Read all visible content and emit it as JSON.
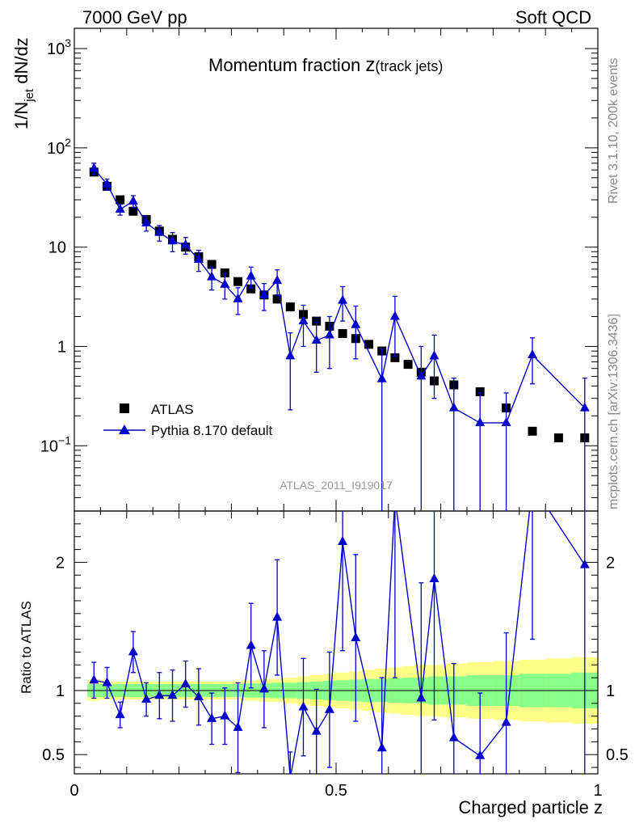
{
  "chart_data": {
    "type": "scatter",
    "header_left": "7000 GeV pp",
    "header_right": "Soft QCD",
    "title_main": "Momentum fraction ",
    "title_var": "z",
    "title_sub": "(track jets)",
    "ylabel_top_prefix": "1/N",
    "ylabel_top_sub": "jet",
    "ylabel_top_suffix": " dN/dz",
    "ylabel_bottom": "Ratio to ATLAS",
    "xlabel": "Charged particle z",
    "watermark": "ATLAS_2011_I919017",
    "side_text_top": "Rivet 3.1.10,  200k events",
    "side_text_bottom": "mcplots.cern.ch [arXiv:1306.3436]",
    "xlim": [
      0,
      1
    ],
    "ylim_top": [
      0.022,
      1600
    ],
    "ylim_bottom": [
      0.35,
      2.4
    ],
    "x_ticks": [
      {
        "v": 0,
        "label": "0"
      },
      {
        "v": 0.5,
        "label": "0.5"
      },
      {
        "v": 1,
        "label": "1"
      }
    ],
    "y_ticks_top": [
      {
        "v": 0.1,
        "base": "10",
        "exp": "−1"
      },
      {
        "v": 1,
        "base": "1",
        "exp": ""
      },
      {
        "v": 10,
        "base": "10",
        "exp": ""
      },
      {
        "v": 100,
        "base": "10",
        "exp": "2"
      },
      {
        "v": 1000,
        "base": "10",
        "exp": "3"
      }
    ],
    "y_ticks_bottom": [
      {
        "v": 0.5,
        "label": "0.5"
      },
      {
        "v": 1,
        "label": "1"
      },
      {
        "v": 2,
        "label": "2"
      }
    ],
    "legend": [
      {
        "name": "ATLAS",
        "marker": "square",
        "color": "#000000"
      },
      {
        "name": "Pythia 8.170 default",
        "marker": "triangle",
        "color": "#0000cc"
      }
    ],
    "colors": {
      "band_outer": "#ffff88",
      "band_inner": "#88ff88",
      "mc": "#0000cc",
      "data": "#000000"
    },
    "bin_edges": [
      0.025,
      0.05,
      0.075,
      0.1,
      0.125,
      0.15,
      0.175,
      0.2,
      0.225,
      0.25,
      0.275,
      0.3,
      0.325,
      0.35,
      0.375,
      0.4,
      0.425,
      0.45,
      0.475,
      0.5,
      0.525,
      0.55,
      0.575,
      0.6,
      0.625,
      0.65,
      0.675,
      0.7,
      0.75,
      0.8,
      0.85,
      0.9,
      0.95,
      1.0
    ],
    "x": [
      0.0375,
      0.0625,
      0.0875,
      0.1125,
      0.1375,
      0.1625,
      0.1875,
      0.2125,
      0.2375,
      0.2625,
      0.2875,
      0.3125,
      0.3375,
      0.3625,
      0.3875,
      0.4125,
      0.4375,
      0.4625,
      0.4875,
      0.5125,
      0.5375,
      0.5625,
      0.5875,
      0.6125,
      0.6375,
      0.6625,
      0.6875,
      0.725,
      0.775,
      0.825,
      0.875,
      0.925,
      0.975
    ],
    "atlas": [
      57,
      41,
      30,
      23,
      19,
      14.5,
      12,
      10,
      8,
      6.7,
      5.5,
      4.5,
      3.8,
      3.3,
      3.0,
      2.5,
      2.1,
      1.8,
      1.6,
      1.35,
      1.2,
      1.05,
      0.9,
      0.77,
      0.66,
      0.55,
      0.45,
      0.41,
      0.35,
      0.24,
      0.14,
      0.12,
      0.12
    ],
    "pythia": [
      62,
      43,
      24,
      29,
      17.5,
      14,
      11.5,
      10.5,
      7.5,
      5.0,
      4.2,
      3.0,
      5.1,
      3.3,
      4.6,
      0.8,
      1.8,
      1.15,
      1.3,
      2.9,
      1.65,
      null,
      0.47,
      2.0,
      null,
      0.5,
      0.8,
      0.24,
      0.17,
      0.17,
      0.82,
      null,
      0.24
    ],
    "pythia_err": [
      8,
      5.5,
      3,
      4,
      3,
      2.5,
      2.5,
      2,
      1.8,
      1.3,
      1.2,
      0.9,
      1.2,
      1.0,
      1.3,
      0.57,
      0.8,
      0.6,
      0.7,
      1.1,
      0.9,
      null,
      0.47,
      1.2,
      null,
      0.5,
      0.5,
      0.24,
      0.17,
      0.17,
      0.4,
      null,
      0.24
    ],
    "ratio": [
      1.08,
      1.06,
      0.81,
      1.3,
      0.93,
      0.96,
      0.96,
      1.05,
      0.95,
      0.78,
      0.8,
      0.71,
      1.35,
      1.01,
      1.57,
      0.32,
      0.87,
      0.68,
      0.85,
      2.16,
      1.41,
      null,
      0.55,
      2.5,
      null,
      0.94,
      1.87,
      0.63,
      0.49,
      0.75,
      2.6,
      null,
      1.98
    ],
    "ratio_err": [
      0.14,
      0.12,
      0.1,
      0.16,
      0.13,
      0.18,
      0.2,
      0.18,
      0.22,
      0.2,
      0.22,
      0.35,
      0.33,
      0.3,
      0.45,
      0.2,
      0.38,
      0.33,
      0.45,
      0.85,
      0.65,
      null,
      0.55,
      1.4,
      null,
      0.9,
      1.1,
      0.58,
      0.49,
      0.7,
      1.2,
      null,
      1.9
    ],
    "band_inner_halfwidth": [
      0.05,
      0.05,
      0.05,
      0.05,
      0.05,
      0.05,
      0.05,
      0.05,
      0.05,
      0.05,
      0.05,
      0.05,
      0.055,
      0.055,
      0.06,
      0.06,
      0.065,
      0.07,
      0.075,
      0.08,
      0.085,
      0.09,
      0.09,
      0.095,
      0.1,
      0.1,
      0.11,
      0.11,
      0.12,
      0.12,
      0.13,
      0.13,
      0.14
    ],
    "band_outer_halfwidth": [
      0.08,
      0.07,
      0.07,
      0.07,
      0.07,
      0.07,
      0.07,
      0.07,
      0.07,
      0.07,
      0.07,
      0.07,
      0.08,
      0.09,
      0.09,
      0.1,
      0.11,
      0.12,
      0.13,
      0.14,
      0.15,
      0.16,
      0.17,
      0.18,
      0.19,
      0.2,
      0.2,
      0.21,
      0.22,
      0.23,
      0.24,
      0.25,
      0.26
    ]
  }
}
